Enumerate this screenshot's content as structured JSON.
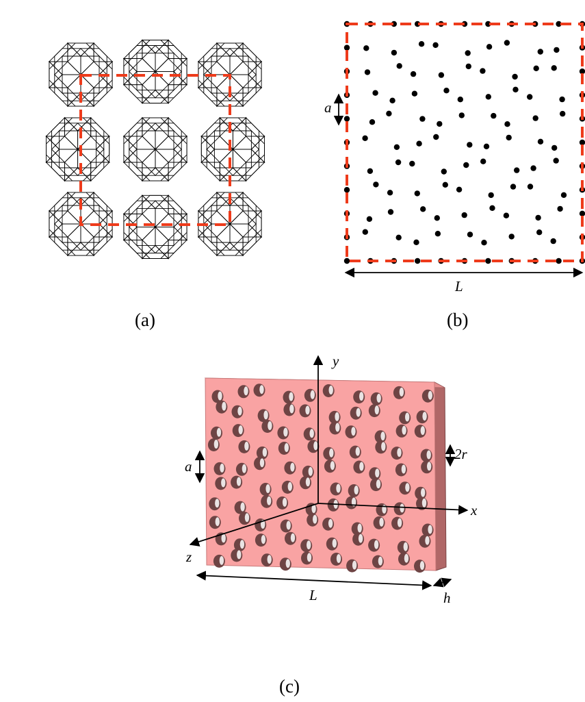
{
  "panels": {
    "a": {
      "caption": "(a)"
    },
    "b": {
      "caption": "(b)",
      "label_a": "a",
      "label_L": "L"
    },
    "c": {
      "caption": "(c)",
      "label_y": "y",
      "label_x": "x",
      "label_z": "z",
      "label_a": "a",
      "label_2r": "2r",
      "label_L": "L",
      "label_h": "h"
    }
  },
  "colors": {
    "dash": "#ee3b1b",
    "slab": "#f9a3a3",
    "slab_side": "#b06767",
    "hole": "#6e4444"
  }
}
